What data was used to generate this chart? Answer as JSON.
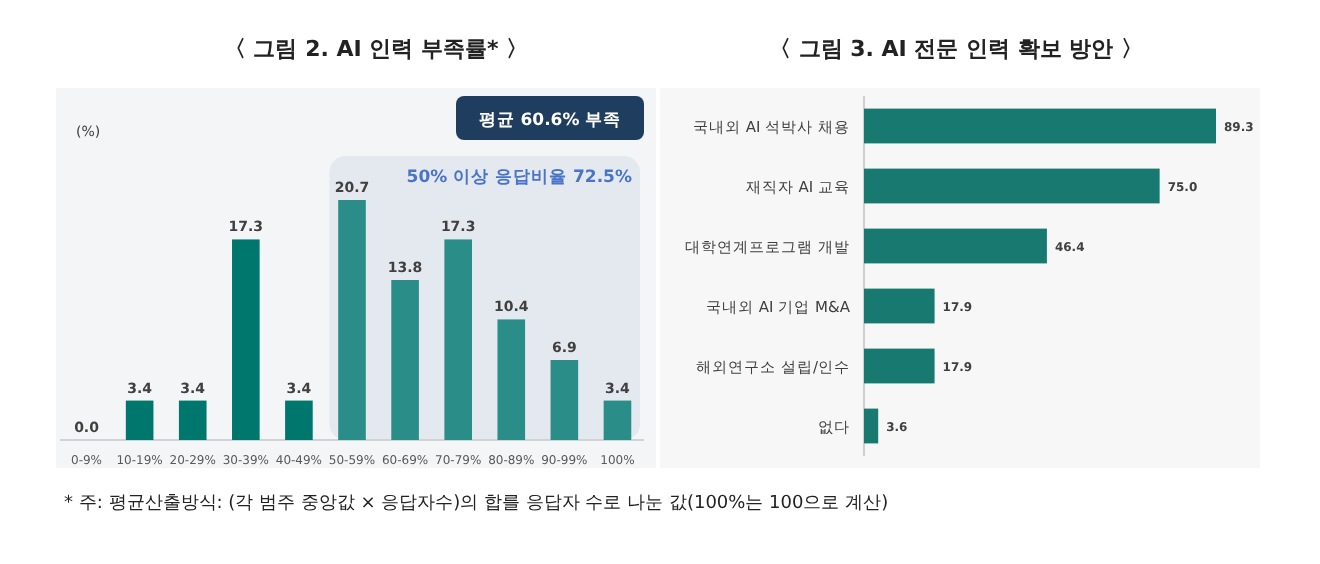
{
  "chart_data": [
    {
      "type": "bar",
      "title": "〈 그림 2. AI 인력 부족률* 〉",
      "ylabel": "(%)",
      "categories": [
        "0-9%",
        "10-19%",
        "20-29%",
        "30-39%",
        "40-49%",
        "50-59%",
        "60-69%",
        "70-79%",
        "80-89%",
        "90-99%",
        "100%"
      ],
      "values": [
        0.0,
        3.4,
        3.4,
        17.3,
        3.4,
        20.7,
        13.8,
        17.3,
        10.4,
        6.9,
        3.4
      ],
      "value_labels": [
        "0.0",
        "3.4",
        "3.4",
        "17.3",
        "3.4",
        "20.7",
        "13.8",
        "17.3",
        "10.4",
        "6.9",
        "3.4"
      ],
      "colors": [
        "#00776c",
        "#00776c",
        "#00776c",
        "#00776c",
        "#00776c",
        "#2a8d88",
        "#2a8d88",
        "#2a8d88",
        "#2a8d88",
        "#2a8d88",
        "#2a8d88"
      ],
      "bands": [
        {
          "axis": "x",
          "from": "50-59%",
          "to": "100%",
          "label": "50% 이상 응답비율 72.5%",
          "color": "#e3e9ef"
        }
      ],
      "annotations": [
        "평균 60.6% 부족",
        "* 주: 평균산출방식: (각 범주 중앙값 × 응답자수)의 합를 응답자 수로 나눈 값(100%는 100으로 계산)"
      ]
    },
    {
      "type": "bar",
      "orientation": "horizontal",
      "title": "〈 그림 3. AI 전문 인력 확보 방안 〉",
      "categories": [
        "국내외 AI 석박사 채용",
        "재직자 AI 교육",
        "대학연계프로그램 개발",
        "국내외 AI 기업 M&A",
        "해외연구소 설립/인수",
        "없다"
      ],
      "values": [
        89.3,
        75.0,
        46.4,
        17.9,
        17.9,
        3.6
      ],
      "value_labels": [
        "89.3",
        "75.0",
        "46.4",
        "17.9",
        "17.9",
        "3.6"
      ],
      "color": "#17796f"
    }
  ]
}
